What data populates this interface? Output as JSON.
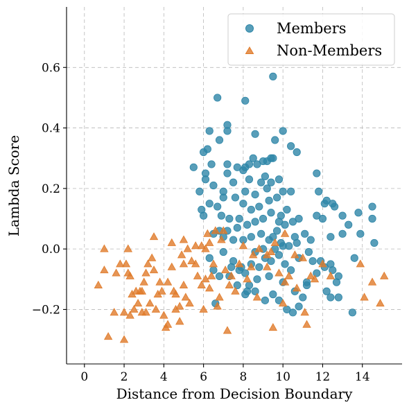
{
  "chart_data": {
    "type": "scatter",
    "xlabel": "Distance from Decision Boundary",
    "ylabel": "Lambda Score",
    "xlim": [
      -0.9,
      16.0
    ],
    "ylim": [
      -0.38,
      0.8
    ],
    "xticks": [
      0,
      2,
      4,
      6,
      8,
      10,
      12,
      14
    ],
    "yticks": [
      -0.2,
      0.0,
      0.2,
      0.4,
      0.6
    ],
    "ytick_labels": [
      "−0.2",
      "0.0",
      "0.2",
      "0.4",
      "0.6"
    ],
    "grid": true,
    "legend_position": "top-right",
    "series": [
      {
        "name": "Members",
        "marker": "circle",
        "color": "#2e86a8",
        "points": [
          [
            9.5,
            0.57
          ],
          [
            6.7,
            0.5
          ],
          [
            8.1,
            0.49
          ],
          [
            7.2,
            0.41
          ],
          [
            7.2,
            0.39
          ],
          [
            6.3,
            0.39
          ],
          [
            8.6,
            0.38
          ],
          [
            10.0,
            0.39
          ],
          [
            10.7,
            0.32
          ],
          [
            6.0,
            0.32
          ],
          [
            6.2,
            0.33
          ],
          [
            6.8,
            0.36
          ],
          [
            9.6,
            0.36
          ],
          [
            9.5,
            0.3
          ],
          [
            10.4,
            0.34
          ],
          [
            6.4,
            0.28
          ],
          [
            6.1,
            0.25
          ],
          [
            5.5,
            0.27
          ],
          [
            7.2,
            0.28
          ],
          [
            8.1,
            0.27
          ],
          [
            8.3,
            0.28
          ],
          [
            8.5,
            0.3
          ],
          [
            8.7,
            0.28
          ],
          [
            9.0,
            0.29
          ],
          [
            9.2,
            0.29
          ],
          [
            9.4,
            0.3
          ],
          [
            8.0,
            0.26
          ],
          [
            7.7,
            0.27
          ],
          [
            7.2,
            0.25
          ],
          [
            6.5,
            0.21
          ],
          [
            5.8,
            0.19
          ],
          [
            6.1,
            0.23
          ],
          [
            7.0,
            0.19
          ],
          [
            7.5,
            0.22
          ],
          [
            8.3,
            0.23
          ],
          [
            8.9,
            0.22
          ],
          [
            9.1,
            0.24
          ],
          [
            9.4,
            0.22
          ],
          [
            9.8,
            0.23
          ],
          [
            9.2,
            0.2
          ],
          [
            8.6,
            0.18
          ],
          [
            8.1,
            0.19
          ],
          [
            7.6,
            0.17
          ],
          [
            7.0,
            0.17
          ],
          [
            6.7,
            0.14
          ],
          [
            6.3,
            0.15
          ],
          [
            5.9,
            0.13
          ],
          [
            6.0,
            0.11
          ],
          [
            6.9,
            0.11
          ],
          [
            7.3,
            0.1
          ],
          [
            7.8,
            0.1
          ],
          [
            8.0,
            0.15
          ],
          [
            8.4,
            0.13
          ],
          [
            8.8,
            0.14
          ],
          [
            9.3,
            0.16
          ],
          [
            9.7,
            0.17
          ],
          [
            10.0,
            0.19
          ],
          [
            10.4,
            0.19
          ],
          [
            10.2,
            0.13
          ],
          [
            9.9,
            0.11
          ],
          [
            9.4,
            0.12
          ],
          [
            9.0,
            0.1
          ],
          [
            8.6,
            0.09
          ],
          [
            8.2,
            0.08
          ],
          [
            7.7,
            0.07
          ],
          [
            7.2,
            0.06
          ],
          [
            6.8,
            0.06
          ],
          [
            6.5,
            0.05
          ],
          [
            7.0,
            0.04
          ],
          [
            7.5,
            0.03
          ],
          [
            8.0,
            0.03
          ],
          [
            8.4,
            0.04
          ],
          [
            8.9,
            0.05
          ],
          [
            9.3,
            0.03
          ],
          [
            9.7,
            0.06
          ],
          [
            10.1,
            0.08
          ],
          [
            10.5,
            0.09
          ],
          [
            10.8,
            0.1
          ],
          [
            11.1,
            0.05
          ],
          [
            10.7,
            0.02
          ],
          [
            10.3,
            0.01
          ],
          [
            9.9,
            0.02
          ],
          [
            9.5,
            0.04
          ],
          [
            9.8,
            0.09
          ],
          [
            11.7,
            0.25
          ],
          [
            11.8,
            0.19
          ],
          [
            12.1,
            0.15
          ],
          [
            12.0,
            0.1
          ],
          [
            11.7,
            0.11
          ],
          [
            12.2,
            0.16
          ],
          [
            12.5,
            0.15
          ],
          [
            13.0,
            0.11
          ],
          [
            13.3,
            0.08
          ],
          [
            13.8,
            0.12
          ],
          [
            14.5,
            0.14
          ],
          [
            14.5,
            0.1
          ],
          [
            14.6,
            0.02
          ],
          [
            12.6,
            0.14
          ],
          [
            12.4,
            0.04
          ],
          [
            13.0,
            0.05
          ],
          [
            13.9,
            0.05
          ],
          [
            13.6,
            -0.03
          ],
          [
            11.9,
            -0.04
          ],
          [
            12.1,
            -0.06
          ],
          [
            12.4,
            -0.05
          ],
          [
            12.5,
            -0.07
          ],
          [
            12.8,
            -0.09
          ],
          [
            12.7,
            -0.11
          ],
          [
            12.2,
            -0.14
          ],
          [
            12.4,
            -0.16
          ],
          [
            12.8,
            -0.16
          ],
          [
            13.5,
            -0.21
          ],
          [
            11.2,
            -0.12
          ],
          [
            11.0,
            -0.16
          ],
          [
            10.8,
            -0.19
          ],
          [
            10.5,
            -0.21
          ],
          [
            10.2,
            -0.2
          ],
          [
            9.8,
            -0.17
          ],
          [
            9.5,
            -0.15
          ],
          [
            9.1,
            -0.17
          ],
          [
            8.6,
            -0.14
          ],
          [
            8.2,
            -0.14
          ],
          [
            7.7,
            -0.12
          ],
          [
            7.3,
            -0.09
          ],
          [
            6.8,
            -0.09
          ],
          [
            6.5,
            -0.07
          ],
          [
            6.3,
            -0.03
          ],
          [
            7.0,
            -0.01
          ],
          [
            7.5,
            -0.04
          ],
          [
            7.9,
            -0.06
          ],
          [
            8.1,
            -0.08
          ],
          [
            8.4,
            -0.05
          ],
          [
            8.8,
            -0.06
          ],
          [
            9.1,
            -0.03
          ],
          [
            9.4,
            -0.04
          ],
          [
            9.8,
            -0.02
          ],
          [
            10.1,
            -0.05
          ],
          [
            10.4,
            -0.07
          ],
          [
            10.8,
            -0.03
          ],
          [
            11.3,
            -0.01
          ],
          [
            11.5,
            -0.04
          ],
          [
            11.7,
            -0.08
          ],
          [
            11.2,
            -0.11
          ],
          [
            10.6,
            -0.14
          ],
          [
            10.0,
            -0.11
          ],
          [
            9.3,
            -0.09
          ],
          [
            8.7,
            -0.1
          ],
          [
            8.3,
            -0.12
          ],
          [
            7.8,
            -0.07
          ],
          [
            7.4,
            -0.06
          ],
          [
            6.6,
            -0.18
          ],
          [
            8.1,
            -0.15
          ],
          [
            8.6,
            -0.01
          ],
          [
            9.0,
            0.0
          ],
          [
            9.6,
            0.0
          ],
          [
            10.0,
            0.01
          ],
          [
            10.6,
            0.04
          ],
          [
            11.4,
            0.03
          ]
        ]
      },
      {
        "name": "Non-Members",
        "marker": "triangle",
        "color": "#e07b2a",
        "points": [
          [
            0.7,
            -0.12
          ],
          [
            1.0,
            -0.07
          ],
          [
            1.0,
            0.0
          ],
          [
            1.2,
            -0.29
          ],
          [
            1.5,
            -0.21
          ],
          [
            1.8,
            -0.05
          ],
          [
            2.0,
            -0.21
          ],
          [
            2.0,
            -0.3
          ],
          [
            2.2,
            -0.08
          ],
          [
            2.1,
            -0.05
          ],
          [
            2.3,
            -0.09
          ],
          [
            2.2,
            0.0
          ],
          [
            2.4,
            -0.15
          ],
          [
            2.5,
            -0.2
          ],
          [
            2.7,
            -0.18
          ],
          [
            2.8,
            -0.14
          ],
          [
            2.9,
            -0.21
          ],
          [
            2.9,
            -0.14
          ],
          [
            3.1,
            -0.08
          ],
          [
            3.1,
            -0.21
          ],
          [
            3.2,
            -0.05
          ],
          [
            3.3,
            -0.18
          ],
          [
            3.4,
            -0.03
          ],
          [
            3.5,
            -0.07
          ],
          [
            3.6,
            -0.2
          ],
          [
            3.8,
            -0.11
          ],
          [
            3.9,
            -0.14
          ],
          [
            4.0,
            -0.22
          ],
          [
            4.1,
            -0.26
          ],
          [
            4.2,
            -0.25
          ],
          [
            4.4,
            -0.06
          ],
          [
            4.5,
            -0.14
          ],
          [
            4.6,
            -0.15
          ],
          [
            4.6,
            -0.2
          ],
          [
            4.8,
            -0.24
          ],
          [
            4.9,
            -0.02
          ],
          [
            5.0,
            -0.12
          ],
          [
            5.0,
            -0.05
          ],
          [
            5.1,
            -0.16
          ],
          [
            5.2,
            0.0
          ],
          [
            5.4,
            -0.04
          ],
          [
            5.6,
            -0.05
          ],
          [
            5.7,
            -0.09
          ],
          [
            5.9,
            -0.12
          ],
          [
            6.0,
            -0.2
          ],
          [
            6.1,
            -0.1
          ],
          [
            6.1,
            0.0
          ],
          [
            6.2,
            0.05
          ],
          [
            6.3,
            -0.13
          ],
          [
            6.4,
            -0.09
          ],
          [
            6.5,
            -0.05
          ],
          [
            6.7,
            -0.19
          ],
          [
            6.8,
            -0.16
          ],
          [
            6.9,
            0.03
          ],
          [
            7.0,
            0.06
          ],
          [
            7.1,
            -0.07
          ],
          [
            7.2,
            -0.27
          ],
          [
            7.3,
            -0.12
          ],
          [
            7.4,
            -0.09
          ],
          [
            7.6,
            -0.14
          ],
          [
            8.0,
            0.01
          ],
          [
            8.2,
            -0.1
          ],
          [
            8.4,
            -0.06
          ],
          [
            8.5,
            -0.02
          ],
          [
            8.8,
            0.0
          ],
          [
            9.2,
            -0.06
          ],
          [
            9.4,
            -0.01
          ],
          [
            9.5,
            -0.26
          ],
          [
            9.6,
            0.02
          ],
          [
            9.8,
            -0.08
          ],
          [
            10.0,
            -0.18
          ],
          [
            10.1,
            -0.11
          ],
          [
            10.3,
            -0.09
          ],
          [
            10.6,
            -0.02
          ],
          [
            11.0,
            -0.03
          ],
          [
            11.1,
            -0.21
          ],
          [
            11.2,
            -0.25
          ],
          [
            11.4,
            -0.09
          ],
          [
            11.6,
            -0.1
          ],
          [
            12.0,
            -0.05
          ],
          [
            12.4,
            -0.09
          ],
          [
            13.9,
            -0.05
          ],
          [
            14.1,
            -0.16
          ],
          [
            14.5,
            -0.11
          ],
          [
            14.9,
            -0.18
          ],
          [
            15.1,
            -0.09
          ],
          [
            3.5,
            0.04
          ],
          [
            4.4,
            0.02
          ],
          [
            5.0,
            0.03
          ],
          [
            5.9,
            0.01
          ],
          [
            2.6,
            -0.14
          ],
          [
            3.0,
            -0.11
          ],
          [
            3.7,
            -0.15
          ],
          [
            4.2,
            -0.11
          ],
          [
            5.6,
            0.01
          ],
          [
            6.3,
            0.02
          ],
          [
            6.6,
            0.06
          ],
          [
            8.7,
            -0.16
          ],
          [
            9.2,
            -0.02
          ],
          [
            10.1,
            0.05
          ],
          [
            1.6,
            -0.08
          ],
          [
            2.3,
            -0.22
          ],
          [
            4.8,
            -0.19
          ],
          [
            5.3,
            -0.18
          ],
          [
            7.8,
            -0.05
          ],
          [
            10.7,
            -0.13
          ]
        ]
      }
    ]
  }
}
